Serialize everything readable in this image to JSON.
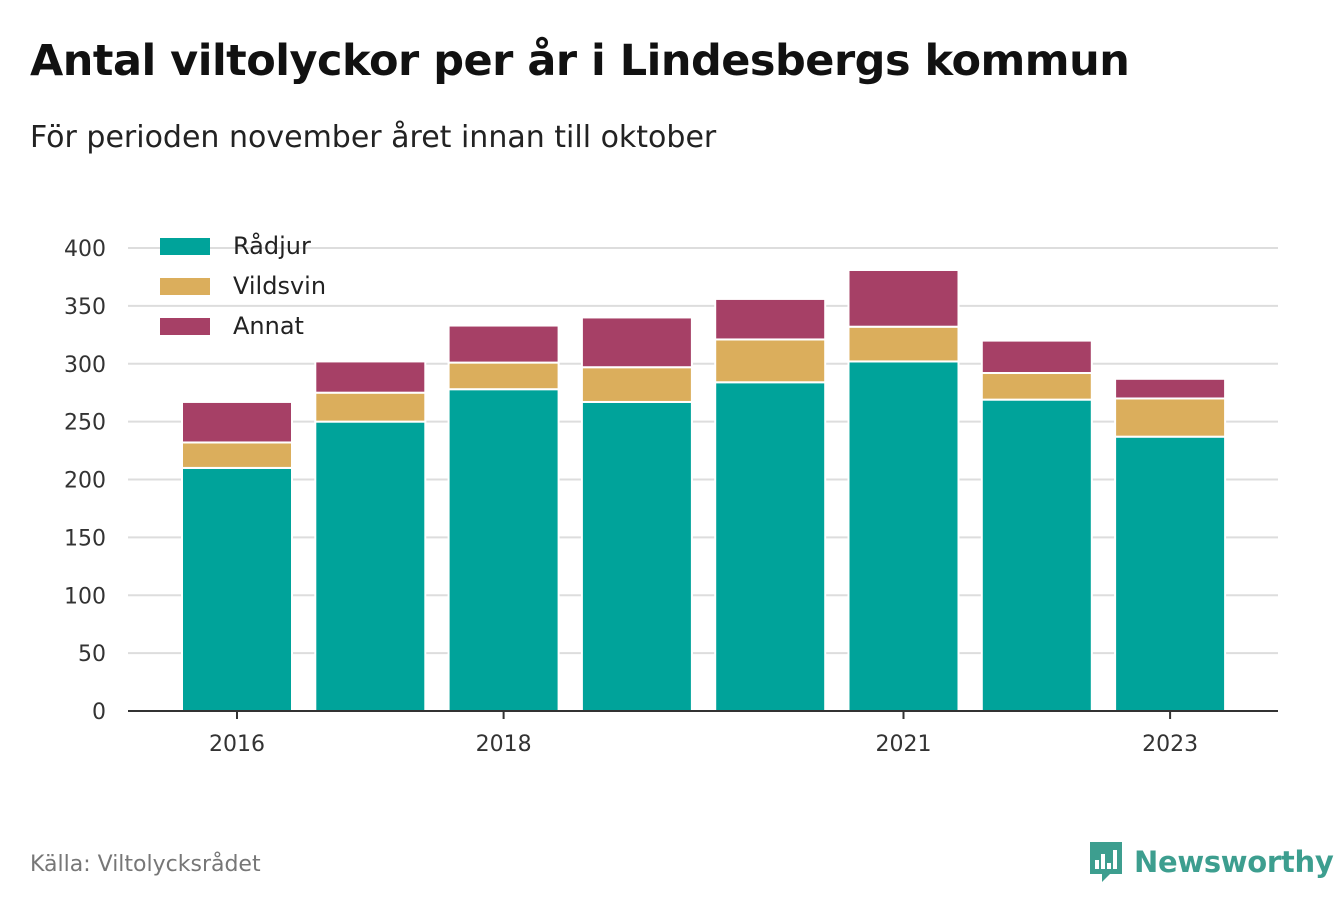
{
  "header": {
    "title": "Antal viltolyckor per år i Lindesbergs kommun",
    "subtitle": "För perioden november året innan till oktober"
  },
  "footer": {
    "source": "Källa: Viltolycksrådet",
    "brand": "Newsworthy",
    "brand_icon": "newsworthy-logo-icon"
  },
  "colors": {
    "Rådjur": "#00a39a",
    "Vildsvin": "#dbae5c",
    "Annat": "#a64066",
    "grid": "#dddddd",
    "axis": "#333333"
  },
  "chart_data": {
    "type": "bar",
    "stacked": true,
    "x": [
      2016,
      2017,
      2018,
      2019,
      2020,
      2021,
      2022,
      2023
    ],
    "x_tick_labels": [
      {
        "x": 2016,
        "label": "2016"
      },
      {
        "x": 2018,
        "label": "2018"
      },
      {
        "x": 2021,
        "label": "2021"
      },
      {
        "x": 2023,
        "label": "2023"
      }
    ],
    "y_ticks": [
      0,
      50,
      100,
      150,
      200,
      250,
      300,
      350,
      400
    ],
    "ylim": [
      0,
      400
    ],
    "grid": true,
    "legend_position": "top-left",
    "series": [
      {
        "name": "Rådjur",
        "values": [
          210,
          250,
          278,
          267,
          284,
          302,
          269,
          237
        ]
      },
      {
        "name": "Vildsvin",
        "values": [
          22,
          25,
          23,
          30,
          37,
          30,
          23,
          33
        ]
      },
      {
        "name": "Annat",
        "values": [
          35,
          27,
          32,
          43,
          35,
          49,
          28,
          17
        ]
      }
    ]
  }
}
